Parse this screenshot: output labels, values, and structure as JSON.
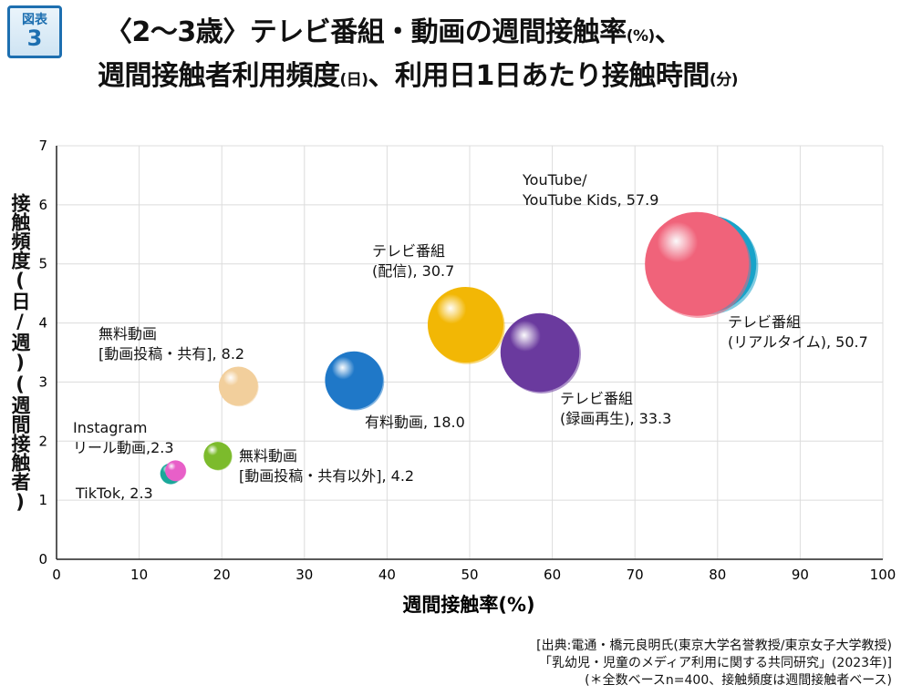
{
  "figure_badge": {
    "label": "図表",
    "number": "3"
  },
  "title": {
    "line1_main": "〈2〜3歳〉テレビ番組・動画の週間接触率",
    "line1_unit": "(%)",
    "line1_tail": "、",
    "line2_a": "週間接触者利用頻度",
    "line2_unit_a": "(日)",
    "line2_b": "、利用日1日あたり接触時間",
    "line2_unit_b": "(分)"
  },
  "colors": {
    "grid": "#dcdcdc",
    "axis": "#222222",
    "bubble_tiktok": "#1aa89a",
    "bubble_instagram": "#e85fc8",
    "bubble_free_excl": "#7cbb2c",
    "bubble_free": "#f2cf9c",
    "bubble_paid": "#1f78c8",
    "bubble_tv_stream": "#f2b705",
    "bubble_tv_rec": "#6a3a9e",
    "bubble_tv_live": "#19a3c9",
    "bubble_youtube": "#f0637a"
  },
  "chart_data": {
    "type": "scatter",
    "subtype": "bubble",
    "xlabel": "週間接触率(%)",
    "ylabel": "接触頻度(日/週)(週間接触者)",
    "xlim": [
      0,
      100
    ],
    "ylim": [
      0,
      7
    ],
    "xticks": [
      "0",
      "10",
      "20",
      "30",
      "40",
      "50",
      "60",
      "70",
      "80",
      "90",
      "100"
    ],
    "yticks": [
      "0",
      "1",
      "2",
      "3",
      "4",
      "5",
      "6",
      "7"
    ],
    "grid": true,
    "size_label": "利用日1日あたり接触時間(分)",
    "points": [
      {
        "id": "tiktok",
        "x": 13.8,
        "y": 1.45,
        "size": 2.3,
        "label_lines": [
          "TikTok, 2.3"
        ],
        "color_key": "bubble_tiktok"
      },
      {
        "id": "instagram",
        "x": 14.4,
        "y": 1.5,
        "size": 2.3,
        "label_lines": [
          "Instagram",
          "リール動画,2.3"
        ],
        "color_key": "bubble_instagram"
      },
      {
        "id": "free_excl",
        "x": 19.5,
        "y": 1.75,
        "size": 4.2,
        "label_lines": [
          "無料動画",
          "[動画投稿・共有以外], 4.2"
        ],
        "color_key": "bubble_free_excl"
      },
      {
        "id": "free",
        "x": 22.0,
        "y": 2.93,
        "size": 8.2,
        "label_lines": [
          "無料動画",
          "[動画投稿・共有], 8.2"
        ],
        "color_key": "bubble_free"
      },
      {
        "id": "paid",
        "x": 36.0,
        "y": 3.03,
        "size": 18.0,
        "label_lines": [
          "有料動画, 18.0"
        ],
        "color_key": "bubble_paid"
      },
      {
        "id": "tv_stream",
        "x": 49.5,
        "y": 3.97,
        "size": 30.7,
        "label_lines": [
          "テレビ番組",
          "(配信), 30.7"
        ],
        "color_key": "bubble_tv_stream"
      },
      {
        "id": "tv_rec",
        "x": 58.5,
        "y": 3.5,
        "size": 33.3,
        "label_lines": [
          "テレビ番組",
          "(録画再生), 33.3"
        ],
        "color_key": "bubble_tv_rec"
      },
      {
        "id": "tv_live",
        "x": 78.8,
        "y": 5.0,
        "size": 50.7,
        "label_lines": [
          "テレビ番組",
          "(リアルタイム), 50.7"
        ],
        "color_key": "bubble_tv_live"
      },
      {
        "id": "youtube",
        "x": 77.5,
        "y": 5.0,
        "size": 57.9,
        "label_lines": [
          "YouTube/",
          "YouTube Kids, 57.9"
        ],
        "color_key": "bubble_youtube"
      }
    ]
  },
  "source": {
    "line1": "[出典:電通・橋元良明氏(東京大学名誉教授/東京女子大学教授)",
    "line2": "「乳幼児・児童のメディア利用に関する共同研究」(2023年)]",
    "line3": "(＊全数ベースn=400、接触頻度は週間接触者ベース)"
  }
}
